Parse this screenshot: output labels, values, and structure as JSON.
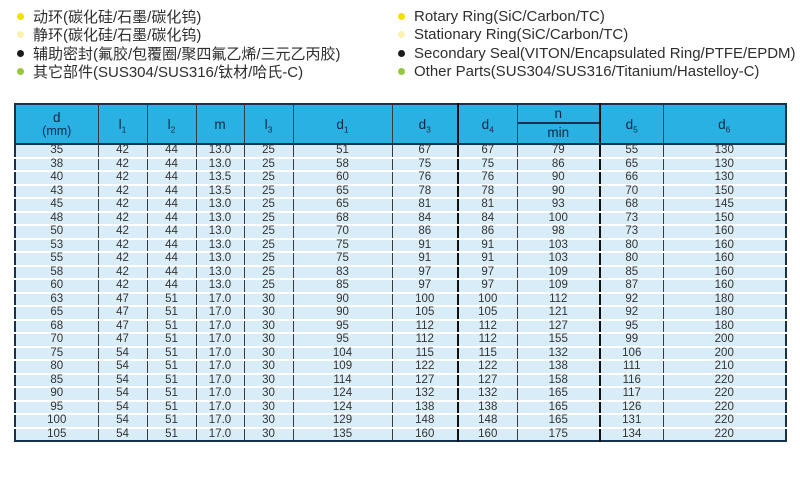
{
  "legend": {
    "left": [
      {
        "text": "动环(碳化硅/石墨/碳化钨)",
        "bullet_color": "#f7e000"
      },
      {
        "text": "静环(碳化硅/石墨/碳化钨)",
        "bullet_color": "#faf3b0"
      },
      {
        "text": "辅助密封(氟胶/包覆圈/聚四氟乙烯/三元乙丙胶)",
        "bullet_color": "#1c1c1c"
      },
      {
        "text": "其它部件(SUS304/SUS316/钛材/哈氏-C)",
        "bullet_color": "#94c83d"
      }
    ],
    "right": [
      {
        "text": "Rotary Ring(SiC/Carbon/TC)",
        "bullet_color": "#f7e000"
      },
      {
        "text": "Stationary Ring(SiC/Carbon/TC)",
        "bullet_color": "#faf3b0"
      },
      {
        "text": "Secondary Seal(VITON/Encapsulated Ring/PTFE/EPDM)",
        "bullet_color": "#1c1c1c"
      },
      {
        "text": "Other Parts(SUS304/SUS316/Titanium/Hastelloy-C)",
        "bullet_color": "#94c83d"
      }
    ]
  },
  "table": {
    "colors": {
      "header_bg": "#2ab1e3",
      "row_bg": "#d9edf8",
      "border_dark": "#16324f"
    },
    "header": [
      {
        "label": "d",
        "sub": "",
        "line2": "(mm)"
      },
      {
        "label": "l",
        "sub": "1"
      },
      {
        "label": "l",
        "sub": "2"
      },
      {
        "label": "m",
        "sub": ""
      },
      {
        "label": "l",
        "sub": "3"
      },
      {
        "label": "d",
        "sub": "1"
      },
      {
        "label": "d",
        "sub": "3"
      },
      {
        "label": "d",
        "sub": "4"
      },
      {
        "label": "n",
        "sub": "",
        "line2_divided": "min"
      },
      {
        "label": "d",
        "sub": "5"
      },
      {
        "label": "d",
        "sub": "6"
      }
    ],
    "rows": [
      [
        "35",
        "42",
        "44",
        "13.0",
        "25",
        "51",
        "67",
        "67",
        "79",
        "55",
        "130"
      ],
      [
        "38",
        "42",
        "44",
        "13.0",
        "25",
        "58",
        "75",
        "75",
        "86",
        "65",
        "130"
      ],
      [
        "40",
        "42",
        "44",
        "13.5",
        "25",
        "60",
        "76",
        "76",
        "90",
        "66",
        "130"
      ],
      [
        "43",
        "42",
        "44",
        "13.5",
        "25",
        "65",
        "78",
        "78",
        "90",
        "70",
        "150"
      ],
      [
        "45",
        "42",
        "44",
        "13.0",
        "25",
        "65",
        "81",
        "81",
        "93",
        "68",
        "145"
      ],
      [
        "48",
        "42",
        "44",
        "13.0",
        "25",
        "68",
        "84",
        "84",
        "100",
        "73",
        "150"
      ],
      [
        "50",
        "42",
        "44",
        "13.0",
        "25",
        "70",
        "86",
        "86",
        "98",
        "73",
        "160"
      ],
      [
        "53",
        "42",
        "44",
        "13.0",
        "25",
        "75",
        "91",
        "91",
        "103",
        "80",
        "160"
      ],
      [
        "55",
        "42",
        "44",
        "13.0",
        "25",
        "75",
        "91",
        "91",
        "103",
        "80",
        "160"
      ],
      [
        "58",
        "42",
        "44",
        "13.0",
        "25",
        "83",
        "97",
        "97",
        "109",
        "85",
        "160"
      ],
      [
        "60",
        "42",
        "44",
        "13.0",
        "25",
        "85",
        "97",
        "97",
        "109",
        "87",
        "160"
      ],
      [
        "63",
        "47",
        "51",
        "17.0",
        "30",
        "90",
        "100",
        "100",
        "112",
        "92",
        "180"
      ],
      [
        "65",
        "47",
        "51",
        "17.0",
        "30",
        "90",
        "105",
        "105",
        "121",
        "92",
        "180"
      ],
      [
        "68",
        "47",
        "51",
        "17.0",
        "30",
        "95",
        "112",
        "112",
        "127",
        "95",
        "180"
      ],
      [
        "70",
        "47",
        "51",
        "17.0",
        "30",
        "95",
        "112",
        "112",
        "155",
        "99",
        "200"
      ],
      [
        "75",
        "54",
        "51",
        "17.0",
        "30",
        "104",
        "115",
        "115",
        "132",
        "106",
        "200"
      ],
      [
        "80",
        "54",
        "51",
        "17.0",
        "30",
        "109",
        "122",
        "122",
        "138",
        "111",
        "210"
      ],
      [
        "85",
        "54",
        "51",
        "17.0",
        "30",
        "114",
        "127",
        "127",
        "158",
        "116",
        "220"
      ],
      [
        "90",
        "54",
        "51",
        "17.0",
        "30",
        "124",
        "132",
        "132",
        "165",
        "117",
        "220"
      ],
      [
        "95",
        "54",
        "51",
        "17.0",
        "30",
        "124",
        "138",
        "138",
        "165",
        "126",
        "220"
      ],
      [
        "100",
        "54",
        "51",
        "17.0",
        "30",
        "129",
        "148",
        "148",
        "165",
        "131",
        "220"
      ],
      [
        "105",
        "54",
        "51",
        "17.0",
        "30",
        "135",
        "160",
        "160",
        "175",
        "134",
        "220"
      ]
    ]
  }
}
